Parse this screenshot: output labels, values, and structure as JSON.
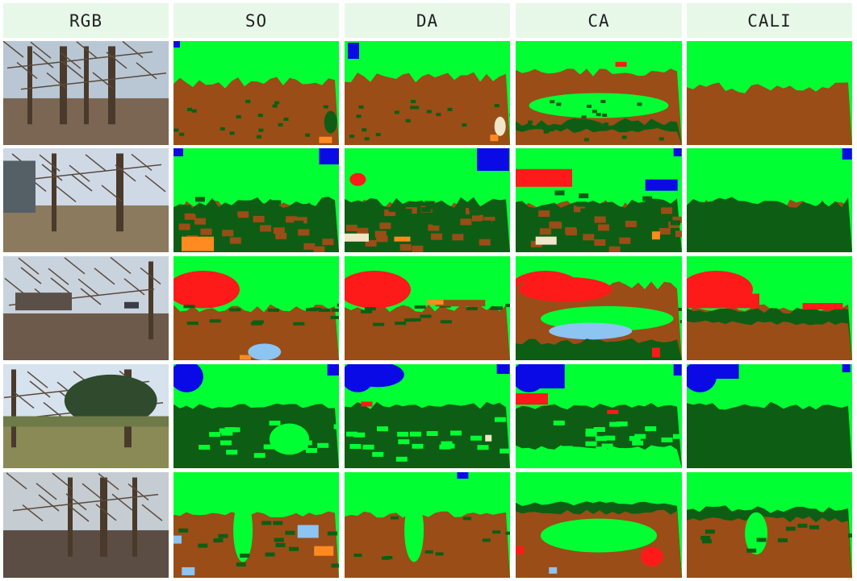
{
  "headers": [
    "RGB",
    "SO",
    "DA",
    "CA",
    "CALI"
  ],
  "colors": {
    "sky": "#00ff33",
    "ground": "#9a4d17",
    "tree": "#0d5e14",
    "building": "#ff1a1a",
    "water": "#0a0ae6",
    "orange": "#ff8a1f",
    "light_blue": "#8cc4f2",
    "cream": "#f2e6c8"
  }
}
